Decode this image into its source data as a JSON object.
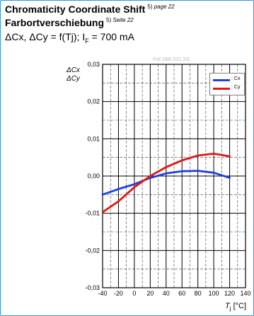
{
  "header": {
    "title_en": "Chromaticity Coordinate Shift",
    "title_en_ref": "5)",
    "title_en_page": "page 22",
    "title_de": "Farbortverschiebung",
    "title_de_ref": "5)",
    "title_de_page": "Seite 22",
    "formula_main": "ΔCx, ΔCy = f(Tj); I",
    "formula_sub": "F",
    "formula_tail": " = 700 mA"
  },
  "watermark": "KW DMLS31.SG",
  "colors": {
    "cx": "#1f3fe0",
    "cy": "#e01818",
    "frame": "#2f9ad0"
  },
  "chart_data": {
    "type": "line",
    "ylabel_lines": [
      "ΔCx",
      "ΔCy"
    ],
    "xlabel_main": "T",
    "xlabel_sub": "j",
    "xlabel_unit": " [°C]",
    "xlim": [
      -40,
      140
    ],
    "ylim": [
      -0.03,
      0.03
    ],
    "xticks": [
      "-40",
      "-20",
      "0",
      "20",
      "40",
      "60",
      "80",
      "100",
      "120",
      "140"
    ],
    "yticks": [
      "0,03",
      "0,02",
      "0,01",
      "0,00",
      "-0,01",
      "-0,02",
      "-0,03"
    ],
    "legend_position": "top-right",
    "grid": true,
    "series": [
      {
        "name": ": Cx",
        "x": [
          -40,
          -20,
          0,
          20,
          40,
          60,
          80,
          100,
          120
        ],
        "y": [
          -0.005,
          -0.0035,
          -0.0022,
          -0.0005,
          0.0007,
          0.0013,
          0.0014,
          0.0009,
          -0.0005
        ]
      },
      {
        "name": ": Cy",
        "x": [
          -40,
          -20,
          0,
          20,
          40,
          60,
          80,
          100,
          120
        ],
        "y": [
          -0.0097,
          -0.0068,
          -0.003,
          0.0,
          0.0024,
          0.0042,
          0.0055,
          0.006,
          0.0053
        ]
      }
    ]
  }
}
